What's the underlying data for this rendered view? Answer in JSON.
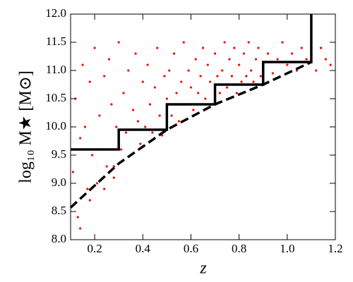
{
  "chart_data": {
    "type": "scatter",
    "xlabel": "z",
    "ylabel": "log₁₀ M★ [M⊙]",
    "xlim": [
      0.1,
      1.2
    ],
    "ylim": [
      8.0,
      12.0
    ],
    "xticks": [
      0.2,
      0.4,
      0.6,
      0.8,
      {
        "value": 1,
        "label": "1.0"
      },
      1.2
    ],
    "yticks": [
      {
        "value": 8,
        "label": "8.0"
      },
      8.5,
      {
        "value": 9,
        "label": "9.0"
      },
      9.5,
      {
        "value": 10,
        "label": "10.0"
      },
      10.5,
      {
        "value": 11,
        "label": "11.0"
      },
      11.5,
      {
        "value": 12,
        "label": "12.0"
      }
    ],
    "series": [
      {
        "type": "scatter",
        "color": "#ff0000",
        "x": [
          0.11,
          0.12,
          0.13,
          0.14,
          0.15,
          0.16,
          0.17,
          0.18,
          0.19,
          0.2,
          0.21,
          0.22,
          0.23,
          0.24,
          0.25,
          0.26,
          0.27,
          0.28,
          0.29,
          0.3,
          0.31,
          0.32,
          0.33,
          0.34,
          0.35,
          0.36,
          0.37,
          0.38,
          0.39,
          0.4,
          0.41,
          0.42,
          0.43,
          0.44,
          0.45,
          0.46,
          0.47,
          0.48,
          0.49,
          0.5,
          0.51,
          0.52,
          0.53,
          0.54,
          0.55,
          0.56,
          0.57,
          0.58,
          0.59,
          0.6,
          0.61,
          0.62,
          0.63,
          0.64,
          0.65,
          0.66,
          0.67,
          0.68,
          0.69,
          0.7,
          0.71,
          0.72,
          0.73,
          0.74,
          0.75,
          0.76,
          0.77,
          0.78,
          0.79,
          0.8,
          0.81,
          0.82,
          0.83,
          0.84,
          0.85,
          0.86,
          0.87,
          0.88,
          0.89,
          0.9,
          0.92,
          0.94,
          0.96,
          0.98,
          1.0,
          1.02,
          1.04,
          1.06,
          1.08,
          1.1,
          1.12,
          1.14,
          1.16,
          1.18,
          0.14,
          0.18,
          0.24,
          0.28
        ],
        "values": [
          9.2,
          10.5,
          8.4,
          9.8,
          11.1,
          10.0,
          8.9,
          10.8,
          9.5,
          11.4,
          9.0,
          10.2,
          9.6,
          10.9,
          9.3,
          11.2,
          10.4,
          9.1,
          10.0,
          11.5,
          9.6,
          10.6,
          9.9,
          11.0,
          9.5,
          10.3,
          11.3,
          10.1,
          9.7,
          10.8,
          10.0,
          11.1,
          10.4,
          9.9,
          10.7,
          11.4,
          10.2,
          9.85,
          10.9,
          10.5,
          11.0,
          10.2,
          11.3,
          10.6,
          10.1,
          10.8,
          11.5,
          10.4,
          11.0,
          10.7,
          10.3,
          11.2,
          10.6,
          10.9,
          11.4,
          10.5,
          11.1,
          10.8,
          10.4,
          11.3,
          10.9,
          10.6,
          11.0,
          11.5,
          10.7,
          11.2,
          10.9,
          11.4,
          10.6,
          11.1,
          10.8,
          11.3,
          10.9,
          11.5,
          11.0,
          10.8,
          11.2,
          11.4,
          10.9,
          11.1,
          11.3,
          10.95,
          11.2,
          11.5,
          11.1,
          11.3,
          11.0,
          11.4,
          11.2,
          11.3,
          11.0,
          11.4,
          11.2,
          11.1,
          8.2,
          8.7,
          8.9,
          9.3
        ]
      },
      {
        "type": "line",
        "color": "#000000",
        "dashed": false,
        "x": [
          0.1,
          0.3,
          0.3,
          0.5,
          0.5,
          0.7,
          0.7,
          0.9,
          0.9,
          1.1,
          1.1
        ],
        "values": [
          9.6,
          9.6,
          9.95,
          9.95,
          10.4,
          10.4,
          10.75,
          10.75,
          11.15,
          11.15,
          12.0
        ]
      },
      {
        "type": "line",
        "color": "#000000",
        "dashed": true,
        "x": [
          0.1,
          0.3,
          0.5,
          0.7,
          0.9,
          1.1
        ],
        "values": [
          8.57,
          9.35,
          9.95,
          10.4,
          10.75,
          11.15
        ]
      }
    ]
  }
}
